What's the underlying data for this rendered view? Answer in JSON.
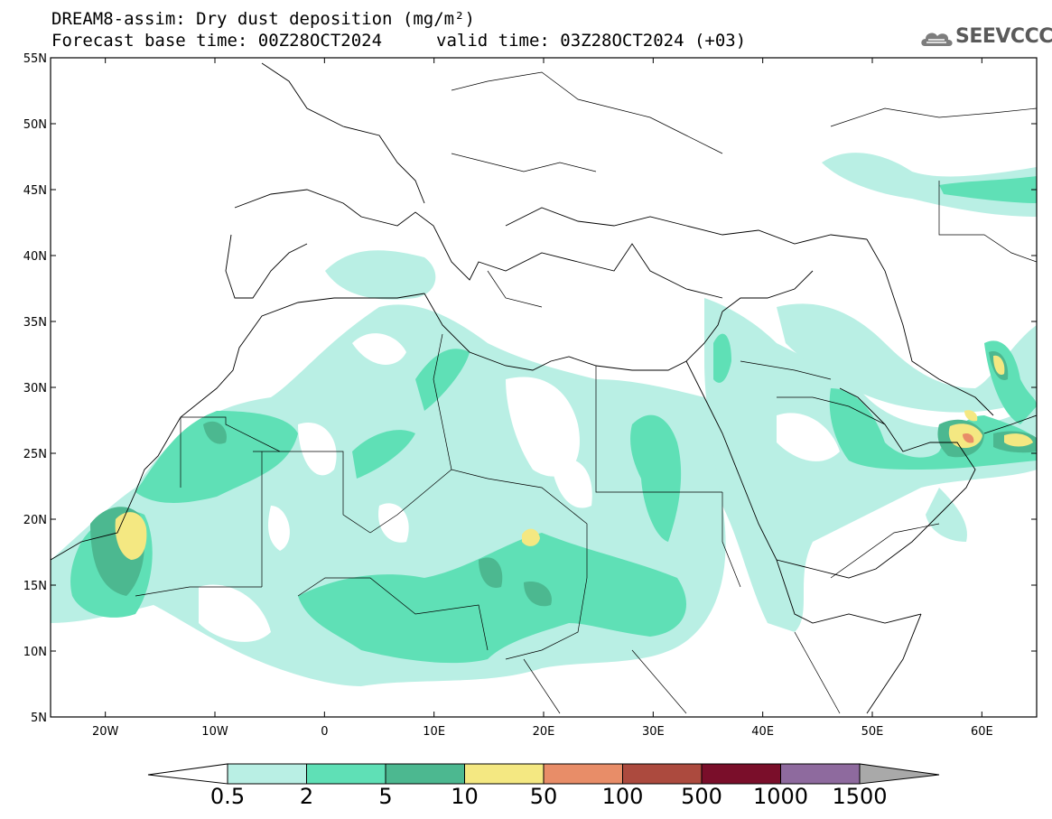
{
  "header": {
    "title_line1": "DREAM8-assim: Dry dust deposition (mg/m²)",
    "title_line2": "Forecast base time: 00Z28OCT2024",
    "valid_time": "valid time: 03Z28OCT2024 (+03)",
    "logo_text": "SEEVCCC"
  },
  "map": {
    "lon_range": [
      -25,
      65
    ],
    "lat_range": [
      5,
      55
    ],
    "lat_labels": [
      "55N",
      "50N",
      "45N",
      "40N",
      "35N",
      "30N",
      "25N",
      "20N",
      "15N",
      "10N",
      "5N"
    ],
    "lon_labels": [
      "20W",
      "10W",
      "0",
      "10E",
      "20E",
      "30E",
      "40E",
      "50E",
      "60E"
    ]
  },
  "colorbar": {
    "labels": [
      "0.5",
      "2",
      "5",
      "10",
      "50",
      "100",
      "500",
      "1000",
      "1500"
    ],
    "colors": [
      "#b9efe4",
      "#5fe0b6",
      "#4cb890",
      "#f4e882",
      "#e88d68",
      "#ac4a3e",
      "#7a0e2a",
      "#8e6a9e"
    ],
    "under_color": "#ffffff",
    "over_color": "#a9a9a9"
  }
}
